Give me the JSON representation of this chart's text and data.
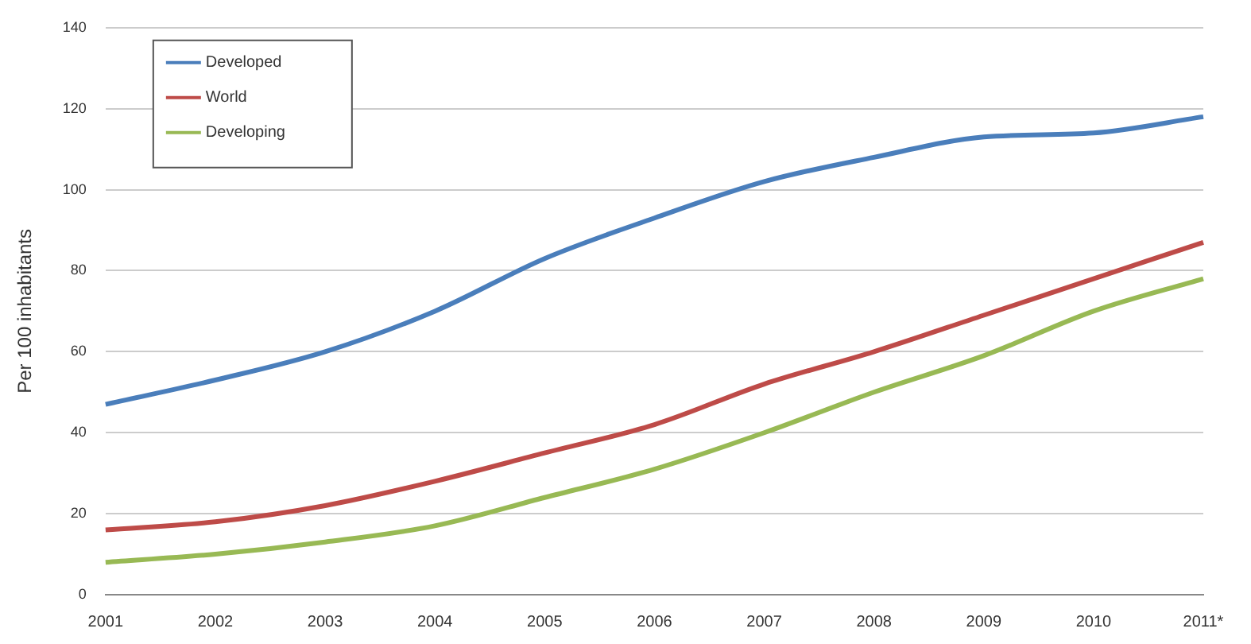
{
  "chart_data": {
    "type": "line",
    "ylabel": "Per 100 inhabitants",
    "categories": [
      "2001",
      "2002",
      "2003",
      "2004",
      "2005",
      "2006",
      "2007",
      "2008",
      "2009",
      "2010",
      "2011*"
    ],
    "series": [
      {
        "name": "Developed",
        "color": "#4a7ebb",
        "values": [
          47,
          53,
          60,
          70,
          83,
          93,
          102,
          108,
          113,
          114,
          118
        ]
      },
      {
        "name": "World",
        "color": "#be4b48",
        "values": [
          16,
          18,
          22,
          28,
          35,
          42,
          52,
          60,
          69,
          78,
          87
        ]
      },
      {
        "name": "Developing",
        "color": "#98b954",
        "values": [
          8,
          10,
          13,
          17,
          24,
          31,
          40,
          50,
          59,
          70,
          78
        ]
      }
    ],
    "ylim": [
      0,
      140
    ],
    "yticks": [
      0,
      20,
      40,
      60,
      80,
      100,
      120,
      140
    ],
    "grid": "y",
    "legend": "top left",
    "marker": "none",
    "line_style": "solid"
  }
}
